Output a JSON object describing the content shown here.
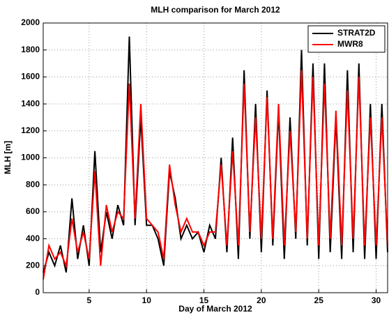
{
  "chart_data": {
    "type": "line",
    "title": "MLH comparison for March 2012",
    "x_label": "Day of March 2012",
    "y_label": "MLH [m]",
    "x": [
      1,
      1.5,
      2,
      2.5,
      3,
      3.5,
      4,
      4.5,
      5,
      5.5,
      6,
      6.5,
      7,
      7.5,
      8,
      8.5,
      9,
      9.5,
      10,
      10.5,
      11,
      11.5,
      12,
      12.5,
      13,
      13.5,
      14,
      14.5,
      15,
      15.5,
      16,
      16.5,
      17,
      17.5,
      18,
      18.5,
      19,
      19.5,
      20,
      20.5,
      21,
      21.5,
      22,
      22.5,
      23,
      23.5,
      24,
      24.5,
      25,
      25.5,
      26,
      26.5,
      27,
      27.5,
      28,
      28.5,
      29,
      29.5,
      30,
      30.5,
      31
    ],
    "series": [
      {
        "name": "STRAT2D",
        "color": "#000000",
        "values": [
          150,
          300,
          200,
          350,
          150,
          700,
          250,
          500,
          200,
          1050,
          300,
          600,
          400,
          650,
          500,
          1900,
          500,
          1300,
          500,
          500,
          400,
          200,
          900,
          700,
          400,
          500,
          400,
          450,
          300,
          500,
          400,
          1000,
          300,
          1150,
          250,
          1650,
          400,
          1400,
          300,
          1500,
          350,
          1350,
          250,
          1300,
          400,
          1800,
          350,
          1700,
          250,
          1700,
          300,
          1300,
          250,
          1650,
          300,
          1700,
          250,
          1400,
          250,
          1400,
          300
        ]
      },
      {
        "name": "MWR8",
        "color": "#ff0000",
        "values": [
          100,
          350,
          250,
          300,
          200,
          550,
          300,
          450,
          250,
          900,
          200,
          650,
          450,
          600,
          550,
          1550,
          550,
          1400,
          550,
          500,
          450,
          250,
          950,
          650,
          450,
          550,
          450,
          450,
          350,
          450,
          450,
          950,
          350,
          1050,
          350,
          1550,
          450,
          1300,
          400,
          1450,
          400,
          1400,
          350,
          1200,
          450,
          1650,
          400,
          1600,
          350,
          1550,
          400,
          1350,
          350,
          1500,
          400,
          1600,
          350,
          1300,
          350,
          1300,
          350
        ]
      }
    ],
    "xlim": [
      1,
      31
    ],
    "xticks": [
      5,
      10,
      15,
      20,
      25,
      30
    ],
    "ylim": [
      0,
      2000
    ],
    "yticks": [
      0,
      200,
      400,
      600,
      800,
      1000,
      1200,
      1400,
      1600,
      1800,
      2000
    ],
    "grid": true,
    "legend": "top-right"
  }
}
